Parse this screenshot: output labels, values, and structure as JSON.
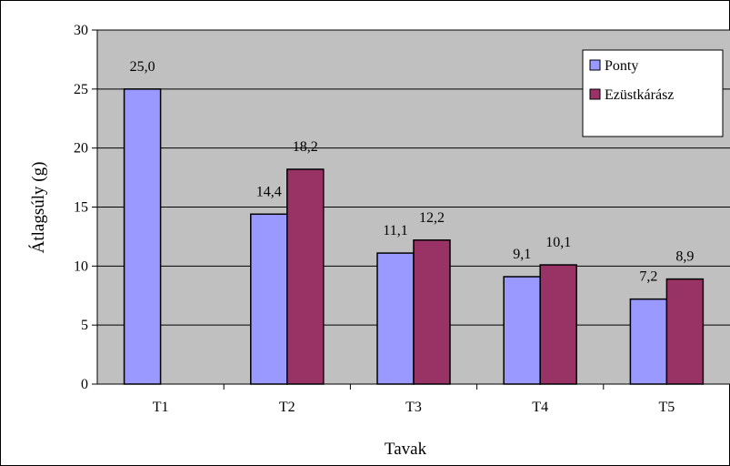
{
  "chart_data": {
    "type": "bar",
    "title": "",
    "xlabel": "Tavak",
    "ylabel": "Átlagsúly (g)",
    "categories": [
      "T1",
      "T2",
      "T3",
      "T4",
      "T5"
    ],
    "ylim": [
      0,
      30
    ],
    "yticks": [
      0,
      5,
      10,
      15,
      20,
      25,
      30
    ],
    "grid": true,
    "legend_position": "top-right",
    "series": [
      {
        "name": "Ponty",
        "color": "#9999ff",
        "values": [
          25.0,
          14.4,
          11.1,
          9.1,
          7.2
        ],
        "labels": [
          "25,0",
          "14,4",
          "11,1",
          "9,1",
          "7,2"
        ]
      },
      {
        "name": "Ezüstkárász",
        "color": "#993366",
        "values": [
          null,
          18.2,
          12.2,
          10.1,
          8.9
        ],
        "labels": [
          null,
          "18,2",
          "12,2",
          "10,1",
          "8,9"
        ]
      }
    ],
    "colors": {
      "plot_background": "#c0c0c0",
      "gridline": "#000000"
    }
  }
}
